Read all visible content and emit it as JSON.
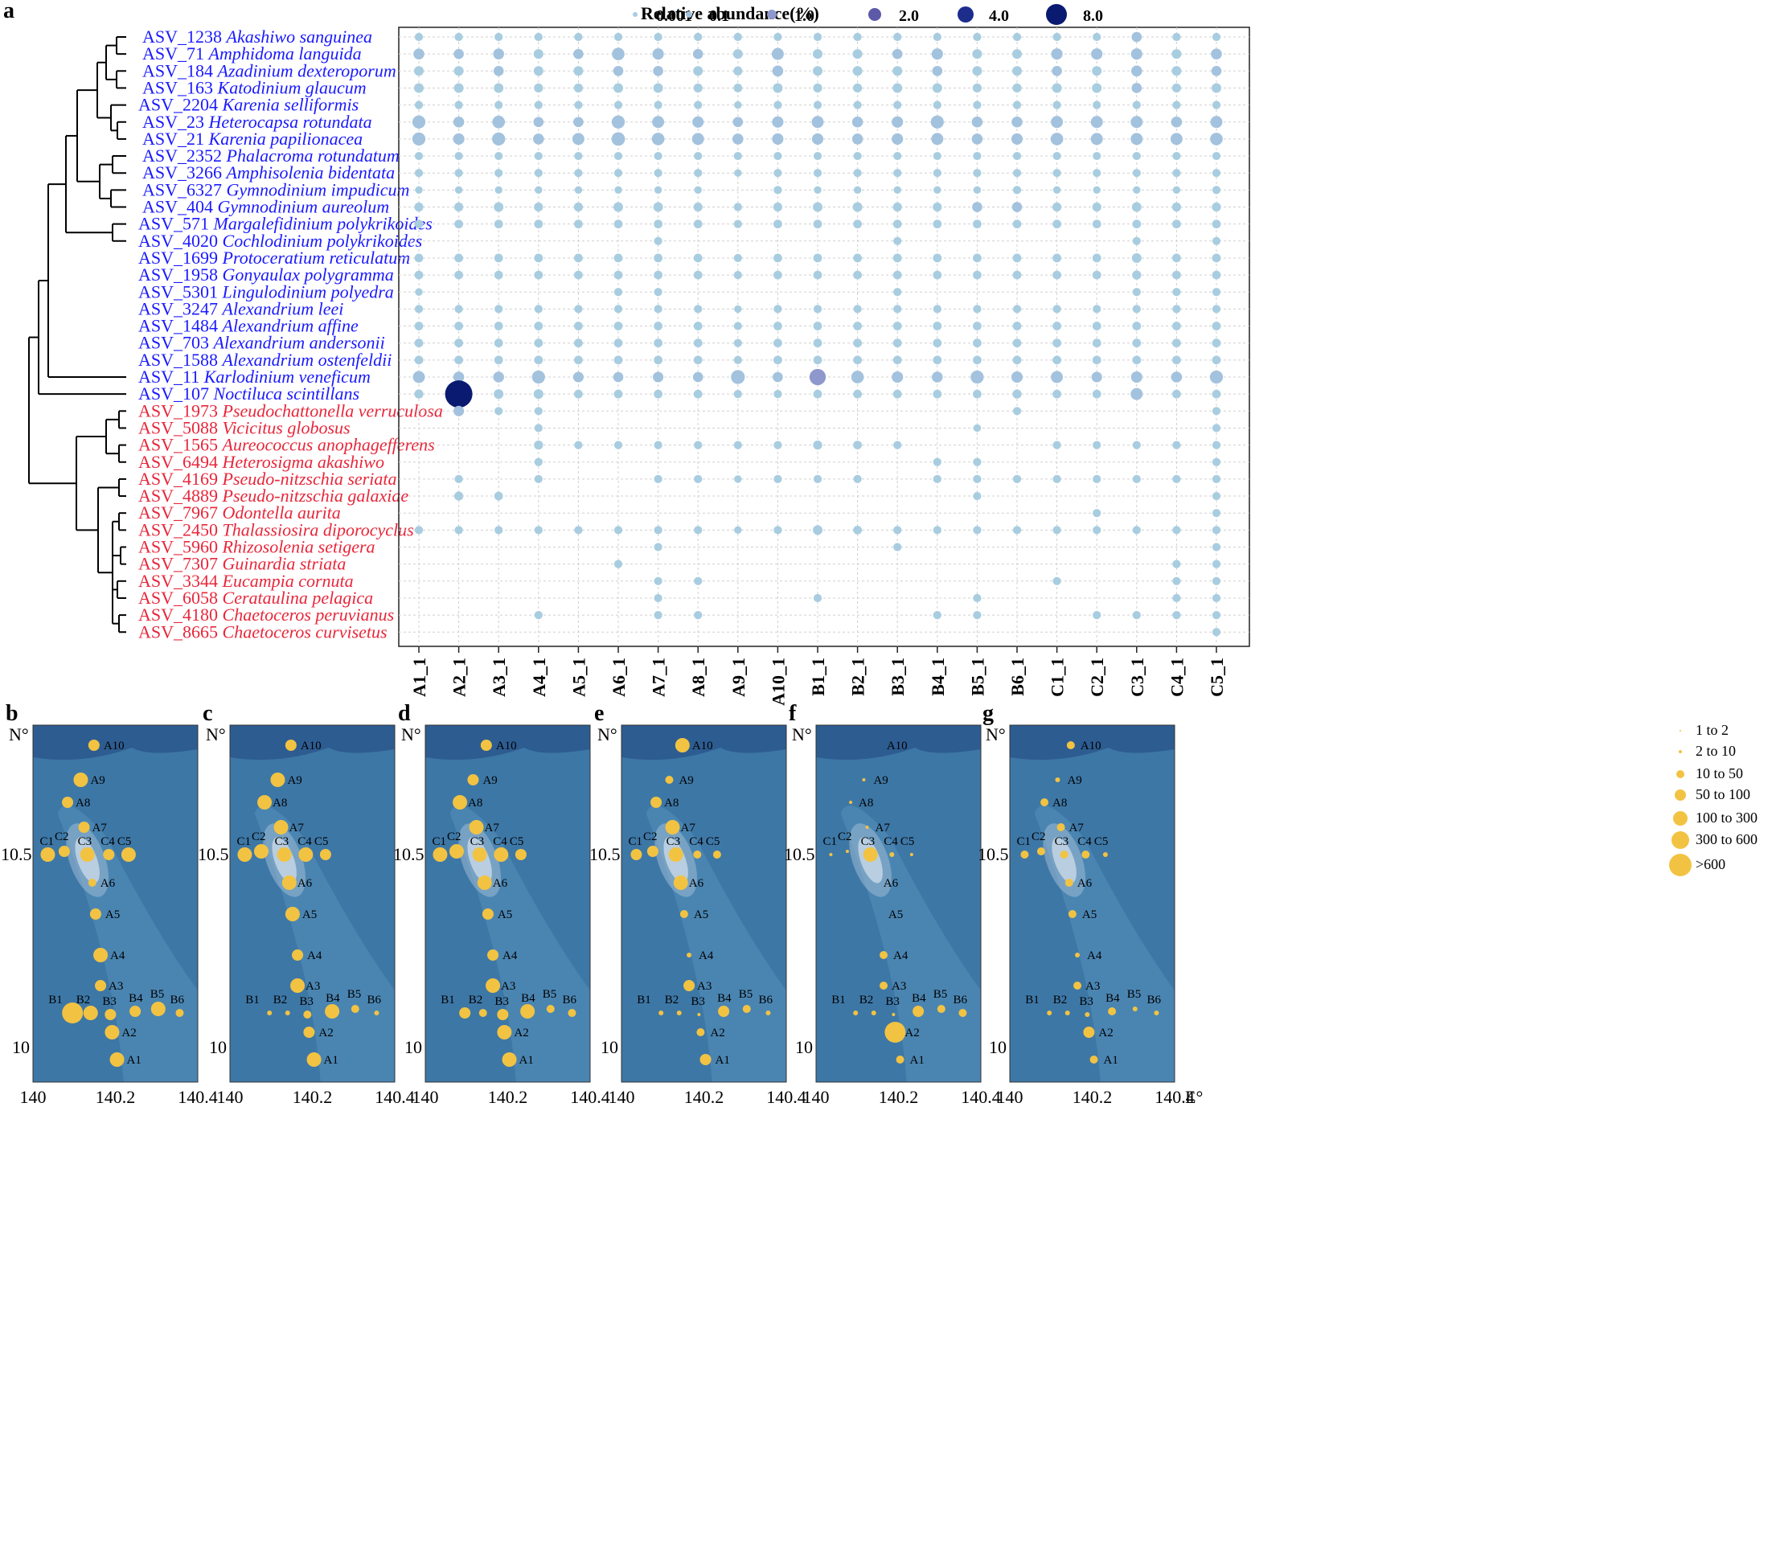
{
  "colors": {
    "blue_group": "#1a1aff",
    "red_group": "#e8273b",
    "bubble_scale": [
      "#a9cde0",
      "#a3c2de",
      "#8e98cc",
      "#5d5aa8",
      "#1c2d8c",
      "#0a1a70"
    ],
    "map_deep": "#2d5c91",
    "map_mid": "#3d77a6",
    "map_shallow": "#5691bb",
    "bubble_map": "#f2c342"
  },
  "panel_a": {
    "letter": "a",
    "legend_title": "Relative abundance(%)",
    "legend_values": [
      "0.001",
      "0.1",
      "1.0",
      "2.0",
      "4.0",
      "8.0"
    ],
    "legend_numeric": [
      0.001,
      0.1,
      1.0,
      2.0,
      4.0,
      8.0
    ],
    "taxa": [
      {
        "id": "ASV_1238",
        "species": "Akashiwo sanguinea",
        "group": "blue"
      },
      {
        "id": "ASV_71",
        "species": "Amphidoma languida",
        "group": "blue"
      },
      {
        "id": "ASV_184",
        "species": "Azadinium dexteroporum",
        "group": "blue"
      },
      {
        "id": "ASV_163",
        "species": "Katodinium glaucum",
        "group": "blue"
      },
      {
        "id": "ASV_2204",
        "species": "Karenia selliformis",
        "group": "blue"
      },
      {
        "id": "ASV_23",
        "species": "Heterocapsa rotundata",
        "group": "blue"
      },
      {
        "id": "ASV_21",
        "species": "Karenia papilionacea",
        "group": "blue"
      },
      {
        "id": "ASV_2352",
        "species": "Phalacroma rotundatum",
        "group": "blue"
      },
      {
        "id": "ASV_3266",
        "species": "Amphisolenia bidentata",
        "group": "blue"
      },
      {
        "id": "ASV_6327",
        "species": "Gymnodinium impudicum",
        "group": "blue"
      },
      {
        "id": "ASV_404",
        "species": "Gymnodinium aureolum",
        "group": "blue"
      },
      {
        "id": "ASV_571",
        "species": "Margalefidinium polykrikoides",
        "group": "blue"
      },
      {
        "id": "ASV_4020",
        "species": "Cochlodinium polykrikoides",
        "group": "blue"
      },
      {
        "id": "ASV_1699",
        "species": "Protoceratium reticulatum",
        "group": "blue"
      },
      {
        "id": "ASV_1958",
        "species": "Gonyaulax polygramma",
        "group": "blue"
      },
      {
        "id": "ASV_5301",
        "species": "Lingulodinium polyedra",
        "group": "blue"
      },
      {
        "id": "ASV_3247",
        "species": "Alexandrium leei",
        "group": "blue"
      },
      {
        "id": "ASV_1484",
        "species": "Alexandrium affine",
        "group": "blue"
      },
      {
        "id": "ASV_703",
        "species": "Alexandrium andersonii",
        "group": "blue"
      },
      {
        "id": "ASV_1588",
        "species": "Alexandrium ostenfeldii",
        "group": "blue"
      },
      {
        "id": "ASV_11",
        "species": "Karlodinium veneficum",
        "group": "blue"
      },
      {
        "id": "ASV_107",
        "species": "Noctiluca scintillans",
        "group": "blue"
      },
      {
        "id": "ASV_1973",
        "species": "Pseudochattonella verruculosa",
        "group": "red"
      },
      {
        "id": "ASV_5088",
        "species": "Vicicitus globosus",
        "group": "red"
      },
      {
        "id": "ASV_1565",
        "species": "Aureococcus anophagefferens",
        "group": "red"
      },
      {
        "id": "ASV_6494",
        "species": "Heterosigma akashiwo",
        "group": "red"
      },
      {
        "id": "ASV_4169",
        "species": "Pseudo-nitzschia seriata",
        "group": "red"
      },
      {
        "id": "ASV_4889",
        "species": "Pseudo-nitzschia galaxiae",
        "group": "red"
      },
      {
        "id": "ASV_7967",
        "species": "Odontella aurita",
        "group": "red"
      },
      {
        "id": "ASV_2450",
        "species": "Thalassiosira diporocyclus",
        "group": "red"
      },
      {
        "id": "ASV_5960",
        "species": "Rhizosolenia setigera",
        "group": "red"
      },
      {
        "id": "ASV_7307",
        "species": "Guinardia striata",
        "group": "red"
      },
      {
        "id": "ASV_3344",
        "species": "Eucampia cornuta",
        "group": "red"
      },
      {
        "id": "ASV_6058",
        "species": "Cerataulina pelagica",
        "group": "red"
      },
      {
        "id": "ASV_4180",
        "species": "Chaetoceros peruvianus",
        "group": "red"
      },
      {
        "id": "ASV_8665",
        "species": "Chaetoceros curvisetus",
        "group": "red"
      }
    ],
    "samples": [
      "A1_1",
      "A2_1",
      "A3_1",
      "A4_1",
      "A5_1",
      "A6_1",
      "A7_1",
      "A8_1",
      "A9_1",
      "A10_1",
      "B1_1",
      "B2_1",
      "B3_1",
      "B4_1",
      "B5_1",
      "B6_1",
      "C1_1",
      "C2_1",
      "C3_1",
      "C4_1",
      "C5_1"
    ]
  },
  "chart_data": {
    "type": "scatter",
    "subtype": "bubble-matrix",
    "size_variable": "Relative abundance(%)",
    "rows": [
      "ASV_1238",
      "ASV_71",
      "ASV_184",
      "ASV_163",
      "ASV_2204",
      "ASV_23",
      "ASV_21",
      "ASV_2352",
      "ASV_3266",
      "ASV_6327",
      "ASV_404",
      "ASV_571",
      "ASV_4020",
      "ASV_1699",
      "ASV_1958",
      "ASV_5301",
      "ASV_3247",
      "ASV_1484",
      "ASV_703",
      "ASV_1588",
      "ASV_11",
      "ASV_107",
      "ASV_1973",
      "ASV_5088",
      "ASV_1565",
      "ASV_6494",
      "ASV_4169",
      "ASV_4889",
      "ASV_7967",
      "ASV_2450",
      "ASV_5960",
      "ASV_7307",
      "ASV_3344",
      "ASV_6058",
      "ASV_4180",
      "ASV_8665"
    ],
    "columns": [
      "A1_1",
      "A2_1",
      "A3_1",
      "A4_1",
      "A5_1",
      "A6_1",
      "A7_1",
      "A8_1",
      "A9_1",
      "A10_1",
      "B1_1",
      "B2_1",
      "B3_1",
      "B4_1",
      "B5_1",
      "B6_1",
      "C1_1",
      "C2_1",
      "C3_1",
      "C4_1",
      "C5_1"
    ],
    "values": [
      [
        0.02,
        0.02,
        0.02,
        0.02,
        0.02,
        0.02,
        0.02,
        0.02,
        0.02,
        0.02,
        0.02,
        0.02,
        0.02,
        0.02,
        0.02,
        0.02,
        0.02,
        0.02,
        0.08,
        0.02,
        0.02
      ],
      [
        0.12,
        0.08,
        0.12,
        0.06,
        0.08,
        0.25,
        0.15,
        0.08,
        0.06,
        0.2,
        0.06,
        0.06,
        0.08,
        0.15,
        0.06,
        0.06,
        0.15,
        0.15,
        0.15,
        0.06,
        0.12
      ],
      [
        0.06,
        0.06,
        0.08,
        0.06,
        0.06,
        0.08,
        0.08,
        0.06,
        0.04,
        0.12,
        0.06,
        0.06,
        0.06,
        0.08,
        0.06,
        0.06,
        0.08,
        0.06,
        0.12,
        0.06,
        0.08
      ],
      [
        0.06,
        0.06,
        0.06,
        0.04,
        0.04,
        0.06,
        0.06,
        0.04,
        0.03,
        0.06,
        0.04,
        0.04,
        0.06,
        0.06,
        0.04,
        0.04,
        0.06,
        0.06,
        0.08,
        0.04,
        0.06
      ],
      [
        0.02,
        0.02,
        0.02,
        0.02,
        0.02,
        0.02,
        0.02,
        0.02,
        0.01,
        0.02,
        0.02,
        0.02,
        0.02,
        0.02,
        0.02,
        0.02,
        0.02,
        0.02,
        0.02,
        0.02,
        0.02
      ],
      [
        0.3,
        0.12,
        0.25,
        0.08,
        0.08,
        0.3,
        0.2,
        0.15,
        0.08,
        0.15,
        0.2,
        0.12,
        0.15,
        0.3,
        0.12,
        0.12,
        0.2,
        0.2,
        0.2,
        0.12,
        0.2
      ],
      [
        0.3,
        0.15,
        0.3,
        0.12,
        0.2,
        0.35,
        0.25,
        0.2,
        0.12,
        0.15,
        0.15,
        0.12,
        0.15,
        0.2,
        0.12,
        0.15,
        0.25,
        0.2,
        0.2,
        0.2,
        0.25
      ],
      [
        0.02,
        0.02,
        0.02,
        0.02,
        0.02,
        0.02,
        0.02,
        0.02,
        0.02,
        0.02,
        0.02,
        0.02,
        0.02,
        0.02,
        0.02,
        0.02,
        0.02,
        0.02,
        0.02,
        0.02,
        0.02
      ],
      [
        0.02,
        0.02,
        0.02,
        0.02,
        0.02,
        0.02,
        0.02,
        0.02,
        0.01,
        0.02,
        0.02,
        0.02,
        0.02,
        0.02,
        0.02,
        0.02,
        0.02,
        0.02,
        0.02,
        0.02,
        0.02
      ],
      [
        0.01,
        0.01,
        0.01,
        0.01,
        0.01,
        0.01,
        0.01,
        0.01,
        0,
        0.02,
        0.01,
        0.01,
        0.01,
        0.01,
        0.01,
        0.02,
        0.01,
        0.01,
        0.01,
        0.01,
        0.02
      ],
      [
        0.04,
        0.04,
        0.06,
        0.04,
        0.04,
        0.06,
        0.06,
        0.04,
        0.02,
        0.04,
        0.06,
        0.06,
        0.04,
        0.04,
        0.08,
        0.08,
        0.04,
        0.04,
        0.06,
        0.04,
        0.04
      ],
      [
        0.03,
        0.03,
        0.03,
        0.03,
        0.03,
        0.03,
        0.03,
        0.03,
        0.02,
        0.03,
        0.03,
        0.03,
        0.03,
        0.03,
        0.03,
        0.03,
        0.03,
        0.03,
        0.03,
        0.03,
        0.03
      ],
      [
        0,
        0,
        0,
        0,
        0,
        0,
        0.02,
        0,
        0,
        0,
        0,
        0,
        0.02,
        0,
        0,
        0,
        0,
        0,
        0.02,
        0,
        0.02
      ],
      [
        0.03,
        0.03,
        0.03,
        0.03,
        0.03,
        0.03,
        0.03,
        0.03,
        0.02,
        0.03,
        0.03,
        0.03,
        0.03,
        0.03,
        0.03,
        0.03,
        0.03,
        0.03,
        0.06,
        0.03,
        0.03
      ],
      [
        0.03,
        0.03,
        0.03,
        0.03,
        0.03,
        0.03,
        0.03,
        0.03,
        0.02,
        0.03,
        0.03,
        0.03,
        0.03,
        0.03,
        0.03,
        0.03,
        0.03,
        0.03,
        0.04,
        0.03,
        0.03
      ],
      [
        0.01,
        0,
        0,
        0,
        0,
        0.02,
        0.02,
        0,
        0,
        0,
        0,
        0,
        0.02,
        0,
        0,
        0,
        0,
        0,
        0.02,
        0.02,
        0.02
      ],
      [
        0.02,
        0.02,
        0.02,
        0.02,
        0.02,
        0.02,
        0.02,
        0.02,
        0.01,
        0.02,
        0.02,
        0.02,
        0.02,
        0.02,
        0.02,
        0.02,
        0.02,
        0.02,
        0.02,
        0.02,
        0.02
      ],
      [
        0.03,
        0.03,
        0.03,
        0.03,
        0.03,
        0.03,
        0.03,
        0.03,
        0.02,
        0.03,
        0.03,
        0.03,
        0.03,
        0.03,
        0.03,
        0.03,
        0.03,
        0.03,
        0.03,
        0.03,
        0.03
      ],
      [
        0.03,
        0.03,
        0.03,
        0.03,
        0.03,
        0.03,
        0.03,
        0.03,
        0.02,
        0.03,
        0.03,
        0.03,
        0.03,
        0.03,
        0.03,
        0.03,
        0.03,
        0.03,
        0.03,
        0.03,
        0.03
      ],
      [
        0.03,
        0.03,
        0.03,
        0.03,
        0.03,
        0.03,
        0.03,
        0.03,
        0.02,
        0.03,
        0.03,
        0.03,
        0.03,
        0.03,
        0.03,
        0.03,
        0.03,
        0.03,
        0.03,
        0.03,
        0.03
      ],
      [
        0.2,
        0.12,
        0.12,
        0.3,
        0.1,
        0.08,
        0.1,
        0.08,
        0.4,
        0.08,
        0.8,
        0.25,
        0.15,
        0.12,
        0.3,
        0.15,
        0.2,
        0.1,
        0.15,
        0.12,
        0.3
      ],
      [
        0.04,
        8.0,
        0.06,
        0.06,
        0.03,
        0.03,
        0.03,
        0.03,
        0.02,
        0.02,
        0.03,
        0.03,
        0.03,
        0.03,
        0.03,
        0.04,
        0.03,
        0.03,
        0.2,
        0.03,
        0.03
      ],
      [
        0,
        0.1,
        0.02,
        0.02,
        0,
        0,
        0,
        0,
        0,
        0,
        0,
        0,
        0,
        0,
        0,
        0.02,
        0,
        0,
        0,
        0,
        0.02
      ],
      [
        0,
        0,
        0,
        0.02,
        0,
        0,
        0,
        0,
        0,
        0,
        0,
        0,
        0,
        0,
        0.01,
        0,
        0,
        0,
        0,
        0,
        0.02
      ],
      [
        0,
        0,
        0,
        0.04,
        0.02,
        0.02,
        0.02,
        0.02,
        0.02,
        0.02,
        0.04,
        0.03,
        0.02,
        0,
        0,
        0,
        0.02,
        0.02,
        0.02,
        0.02,
        0.02
      ],
      [
        0,
        0,
        0,
        0.02,
        0,
        0,
        0,
        0,
        0,
        0,
        0,
        0,
        0,
        0.02,
        0.02,
        0,
        0,
        0,
        0,
        0,
        0.02
      ],
      [
        0,
        0.02,
        0,
        0.02,
        0,
        0,
        0.02,
        0.02,
        0.01,
        0.02,
        0.02,
        0.02,
        0,
        0.02,
        0.02,
        0.02,
        0.02,
        0.02,
        0.02,
        0.02,
        0.02
      ],
      [
        0,
        0.04,
        0.03,
        0,
        0,
        0,
        0,
        0,
        0,
        0,
        0,
        0,
        0,
        0,
        0.02,
        0,
        0,
        0,
        0,
        0,
        0.02
      ],
      [
        0,
        0,
        0,
        0,
        0,
        0,
        0,
        0,
        0,
        0,
        0,
        0,
        0,
        0,
        0,
        0,
        0,
        0.02,
        0,
        0,
        0.02
      ],
      [
        0.02,
        0.02,
        0.02,
        0.02,
        0.02,
        0.02,
        0.02,
        0.02,
        0.01,
        0.02,
        0.06,
        0.03,
        0.02,
        0.02,
        0.02,
        0.02,
        0.02,
        0.02,
        0.02,
        0.02,
        0.02
      ],
      [
        0,
        0,
        0,
        0,
        0,
        0,
        0.02,
        0,
        0,
        0,
        0,
        0,
        0.02,
        0,
        0,
        0,
        0,
        0,
        0,
        0,
        0.02
      ],
      [
        0,
        0,
        0,
        0,
        0,
        0.02,
        0,
        0,
        0,
        0,
        0,
        0,
        0,
        0,
        0,
        0,
        0,
        0,
        0,
        0.02,
        0.02
      ],
      [
        0,
        0,
        0,
        0,
        0,
        0,
        0.02,
        0.02,
        0,
        0,
        0,
        0,
        0,
        0,
        0,
        0,
        0.02,
        0,
        0,
        0.02,
        0.02
      ],
      [
        0,
        0,
        0,
        0,
        0,
        0,
        0.02,
        0,
        0,
        0,
        0.02,
        0,
        0,
        0,
        0.02,
        0,
        0,
        0,
        0,
        0.02,
        0.02
      ],
      [
        0,
        0,
        0,
        0.02,
        0,
        0,
        0.02,
        0.02,
        0,
        0,
        0,
        0,
        0,
        0.02,
        0.02,
        0,
        0,
        0.02,
        0.02,
        0.02,
        0.02
      ],
      [
        0,
        0,
        0,
        0,
        0,
        0,
        0,
        0,
        0,
        0,
        0,
        0,
        0,
        0,
        0,
        0,
        0,
        0,
        0,
        0,
        0.02
      ]
    ]
  },
  "maps": {
    "y_top_label": "N°",
    "y_ticks": [
      "10.5",
      "10"
    ],
    "x_ticks": [
      "140",
      "140.2",
      "140.4"
    ],
    "x_unit": "E°",
    "panels": [
      "b",
      "c",
      "d",
      "e",
      "f",
      "g"
    ],
    "site_names": [
      "A1",
      "A2",
      "A3",
      "A4",
      "A5",
      "A6",
      "A7",
      "A8",
      "A9",
      "A10",
      "B1",
      "B2",
      "B3",
      "B4",
      "B5",
      "B6",
      "C1",
      "C2",
      "C3",
      "C4",
      "C5"
    ],
    "counts": {
      "b": [
        5,
        5,
        4,
        5,
        4,
        3,
        4,
        4,
        5,
        4,
        7,
        5,
        4,
        4,
        5,
        3,
        5,
        4,
        5,
        4,
        5
      ],
      "c": [
        5,
        4,
        5,
        4,
        5,
        5,
        5,
        5,
        5,
        4,
        2,
        2,
        3,
        5,
        3,
        2,
        5,
        5,
        5,
        5,
        4
      ],
      "d": [
        5,
        5,
        5,
        4,
        4,
        5,
        5,
        5,
        4,
        4,
        4,
        3,
        4,
        5,
        3,
        3,
        5,
        5,
        5,
        5,
        4
      ],
      "e": [
        4,
        3,
        4,
        2,
        3,
        5,
        5,
        4,
        3,
        5,
        2,
        2,
        1,
        4,
        3,
        2,
        4,
        4,
        5,
        3,
        3
      ],
      "f": [
        3,
        7,
        3,
        3,
        0,
        0,
        1,
        1,
        1,
        0,
        2,
        2,
        1,
        4,
        3,
        3,
        1,
        1,
        5,
        2,
        1
      ],
      "g": [
        3,
        4,
        3,
        2,
        3,
        3,
        3,
        3,
        2,
        3,
        2,
        2,
        2,
        3,
        2,
        2,
        3,
        3,
        3,
        3,
        2
      ]
    },
    "size_legend": [
      "1 to 2",
      "2 to 10",
      "10 to 50",
      "50 to 100",
      "100 to 300",
      "300 to 600",
      ">600"
    ]
  }
}
